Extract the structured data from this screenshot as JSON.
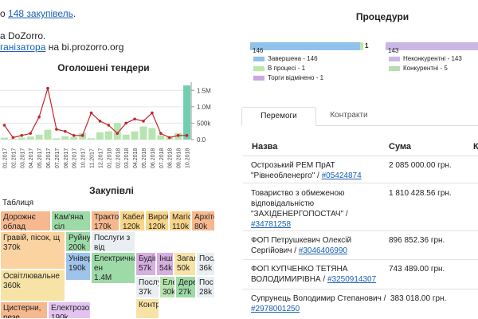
{
  "header": {
    "line1_prefix": "о",
    "line1_link": "148 закупівель",
    "line1_suffix": ".",
    "line2": "а DoZorro.",
    "line3_link": "ганізатора",
    "line3_suffix": "на bi.prozorro.org"
  },
  "chart_data": {
    "type": "bar",
    "title": "Оголошені тендери",
    "categories": [
      "01.2017",
      "02.2017",
      "03.2017",
      "04.2017",
      "05.2017",
      "06.2017",
      "07.2017",
      "08.2017",
      "09.2017",
      "10.2017",
      "11.2017",
      "12.2017",
      "01.2018",
      "02.2018",
      "03.2018",
      "04.2018",
      "05.2018",
      "06.2018",
      "07.2018",
      "08.2018",
      "09.2018",
      "10.2018"
    ],
    "series": [
      {
        "type": "bar",
        "color": "#b7e4b0",
        "values": [
          60000,
          20000,
          60000,
          90000,
          150000,
          300000,
          40000,
          100000,
          80000,
          200000,
          40000,
          220000,
          250000,
          500000,
          150000,
          250000,
          400000,
          350000,
          130000,
          80000,
          200000,
          1650000
        ]
      },
      {
        "type": "line",
        "color": "#c0272d",
        "values": [
          7,
          1,
          2,
          3,
          11,
          25,
          5,
          4,
          2,
          2,
          13,
          9,
          7,
          3,
          8,
          10,
          9,
          13,
          3,
          1,
          2,
          2
        ]
      }
    ],
    "ylim": [
      0,
      1750000
    ],
    "yticks": [
      "1.5M",
      "1.0M",
      "500k",
      "0.0"
    ]
  },
  "treemap": {
    "title": "Закупівлі",
    "table_label": "Таблиця",
    "cells": [
      {
        "name": "Дорожнє облад",
        "value": "400k",
        "color": "#f6b98f"
      },
      {
        "name": "Кам'яна сіл",
        "value": "200k",
        "color": "#9edaa8"
      },
      {
        "name": "Трактори",
        "value": "170k",
        "color": "#f6b98f"
      },
      {
        "name": "Кабелі",
        "value": "120k",
        "color": "#f9d58a"
      },
      {
        "name": "Вироби",
        "value": "120k",
        "color": "#f9d58a"
      },
      {
        "name": "Магіст",
        "value": "110k",
        "color": "#f9d58a"
      },
      {
        "name": "Архіте",
        "value": "80k",
        "color": "#f6b98f"
      },
      {
        "name": "Руйнування",
        "value": "200k",
        "color": "#9edaa8"
      },
      {
        "name": "Гравій, пісок, щ",
        "value": "370k",
        "color": "#fbd3a0"
      },
      {
        "name": "Послуги з від",
        "value": "",
        "color": "#e9eef2"
      },
      {
        "name": "Будів",
        "value": "57k",
        "color": "#d6aee0"
      },
      {
        "name": "Інші",
        "value": "54k",
        "color": "#d6aee0"
      },
      {
        "name": "Загал",
        "value": "50k",
        "color": "#f7e3a6"
      },
      {
        "name": "Послу",
        "value": "36k",
        "color": "#e9eef2"
      },
      {
        "name": "Універсальн",
        "value": "190k",
        "color": "#9fc4ec"
      },
      {
        "name": "Електрична ен",
        "value": "1.4M",
        "color": "#9edaa8"
      },
      {
        "name": "Освітлювальне",
        "value": "360k",
        "color": "#f7e3a6"
      },
      {
        "name": "Послуги",
        "value": "37k",
        "color": "#e9eef2"
      },
      {
        "name": "Еле",
        "value": "30k",
        "color": "#b7e4b0"
      },
      {
        "name": "Дере",
        "value": "27k",
        "color": "#9edaa8"
      },
      {
        "name": "Пос",
        "value": "28k",
        "color": "#e9eef2"
      },
      {
        "name": "Електрозо",
        "value": "190k",
        "color": "#e4c3f0"
      },
      {
        "name": "Контр",
        "value": "",
        "color": "#f7e3a6"
      },
      {
        "name": "Цистерни, резе",
        "value": "",
        "color": "#f6b98f"
      }
    ]
  },
  "procedures": {
    "title": "Процедури",
    "bar_left_value": "146",
    "bar_left_end": "1",
    "bar_right_value": "143",
    "legend_left": [
      "Завершена - 146",
      "В процесі - 1",
      "Торги відмінено - 1"
    ],
    "legend_right": [
      "Неконкурентні - 143",
      "Конкурентні - 5"
    ],
    "colors": {
      "done": "#90c2ec",
      "progress": "#b8eaa6",
      "cancelled": "#c9a8e0",
      "noncomp": "#c9b8e6",
      "comp": "#b9dcb0"
    }
  },
  "tabs": [
    {
      "label": "Перемоги",
      "active": true
    },
    {
      "label": "Контракти",
      "active": false
    }
  ],
  "table": {
    "col_name": "Назва",
    "col_sum": "Сума",
    "col_extra": "К",
    "rows": [
      {
        "name": "Острозький РЕМ ПрАТ \"Рівнеобленерго\" / ",
        "code": "#05424874",
        "sum": "2 085 000.00 грн."
      },
      {
        "name": "Товариство з обмеженою відповідальністю \"ЗАХІДЕНЕРГОПОСТАЧ\" / ",
        "code": "#34781258",
        "sum": "1 810 428.56 грн."
      },
      {
        "name": "ФОП Петрушкевич Олексій Сергійович / ",
        "code": "#3046406990",
        "sum": "896 852.36 грн."
      },
      {
        "name": "ФОП КУПЧЕНКО ТЕТЯНА ВОЛОДИМИРІВНА / ",
        "code": "#3250914307",
        "sum": "743 489.00 грн."
      },
      {
        "name": "Супрунець Володимир Степанович / ",
        "code": "#2978001250",
        "sum": "383 018.00 грн."
      }
    ]
  }
}
